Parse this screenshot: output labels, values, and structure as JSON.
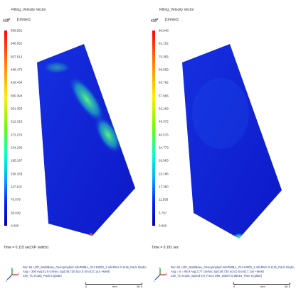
{
  "left": {
    "title": "Filling_Velocity Vector",
    "exponent": "x10",
    "exponent_power": "0",
    "unit": "[cm/sec]",
    "ticks": [
      "585.591",
      "546.552",
      "507.512",
      "468.473",
      "429.434",
      "390.394",
      "351.355",
      "312.315",
      "273.276",
      "234.236",
      "195.197",
      "156.158",
      "117.118",
      "78.079",
      "39.039",
      "0.000"
    ],
    "time": "Time = 0.115 sec(VP switch)",
    "info": [
      "Run 61 LOP_MoldBase_Genoproplaid mfePMMA_GH-10000_1.mfePMA 0.113s_Pack Studio",
      "Avg = 300 Avg:61 8 cm/sec Spd:48.730 Scn:0 Sm:617.144 +Mesh",
      "CW_TU 0.025_Pack 5 (plate)"
    ],
    "scale_left": "0",
    "scale_right": "50.0",
    "scale_unit": "mm"
  },
  "right": {
    "title": "Filling_Velocity Vector",
    "exponent": "x10",
    "exponent_power": "0",
    "unit": "[cm/sec]",
    "ticks": [
      "86.948",
      "81.152",
      "75.355",
      "69.559",
      "63.762",
      "57.966",
      "52.169",
      "46.372",
      "40.576",
      "34.779",
      "28.983",
      "23.186",
      "17.390",
      "11.593",
      "5.797",
      "0.000"
    ],
    "time": "Time = 0.181 sec",
    "info": [
      "Run 61 LOP_MoldBase_Genoproplaid mfePMMA_GH-10000_1.mfePMA 0.113s_Pack Studio",
      "Avg = 0 = 96.9 Avg:3.77 cm/sec Spd:48.730 Scn:0 Sm:617.144 +Mesh",
      "CW_TU 0.025_Speed 0.0_Force 999_Switch 0.96015_Time 5 (plate)"
    ],
    "scale_left": "0",
    "scale_right": "50.0",
    "scale_unit": "mm"
  },
  "colors": {
    "part_fill": "#1422d8",
    "hotspot": "#39e07a",
    "legend_text": "#2a3a8a"
  }
}
